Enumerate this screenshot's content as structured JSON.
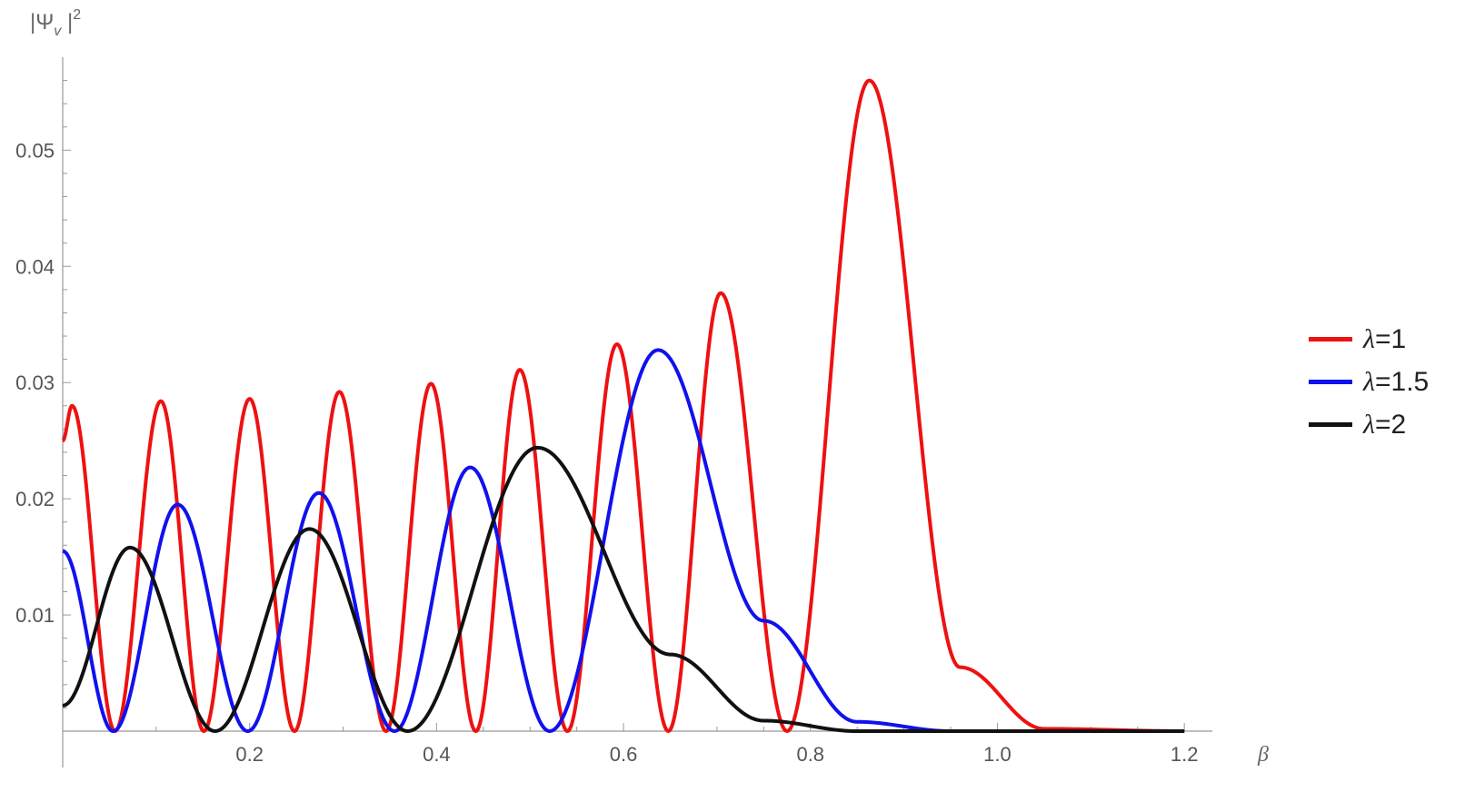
{
  "chart_data": {
    "type": "line",
    "title": "",
    "xlabel": "β",
    "ylabel": "|Ψ_v|²",
    "xlim": [
      0,
      1.23
    ],
    "ylim": [
      0,
      0.058
    ],
    "x_ticks": [
      0.2,
      0.4,
      0.6,
      0.8,
      1.0,
      1.2
    ],
    "x_tick_labels": [
      "0.2",
      "0.4",
      "0.6",
      "0.8",
      "1.0",
      "1.2"
    ],
    "y_ticks": [
      0.01,
      0.02,
      0.03,
      0.04,
      0.05
    ],
    "y_tick_labels": [
      "0.01",
      "0.02",
      "0.03",
      "0.04",
      "0.05"
    ],
    "legend_position": "right",
    "series": [
      {
        "name": "λ=1",
        "label_symbol": "λ",
        "label_value": "=1",
        "color": "#ee1111",
        "points": [
          [
            0.0,
            0.025
          ],
          [
            0.01,
            0.028
          ],
          [
            0.056,
            0.0
          ],
          [
            0.105,
            0.0284
          ],
          [
            0.151,
            0.0
          ],
          [
            0.2,
            0.0286
          ],
          [
            0.248,
            0.0
          ],
          [
            0.296,
            0.0292
          ],
          [
            0.346,
            0.0
          ],
          [
            0.394,
            0.0299
          ],
          [
            0.442,
            0.0
          ],
          [
            0.489,
            0.0311
          ],
          [
            0.54,
            0.0
          ],
          [
            0.593,
            0.0333
          ],
          [
            0.648,
            0.0
          ],
          [
            0.704,
            0.0377
          ],
          [
            0.775,
            0.0
          ],
          [
            0.863,
            0.056
          ],
          [
            0.96,
            0.0055
          ],
          [
            1.05,
            0.0002
          ],
          [
            1.2,
            0.0
          ]
        ]
      },
      {
        "name": "λ=1.5",
        "label_symbol": "λ",
        "label_value": "=1.5",
        "color": "#1111ee",
        "points": [
          [
            0.0,
            0.0155
          ],
          [
            0.054,
            0.0
          ],
          [
            0.123,
            0.0195
          ],
          [
            0.198,
            0.0
          ],
          [
            0.274,
            0.0205
          ],
          [
            0.355,
            0.0
          ],
          [
            0.436,
            0.0227
          ],
          [
            0.521,
            0.0
          ],
          [
            0.637,
            0.0328
          ],
          [
            0.75,
            0.0095
          ],
          [
            0.85,
            0.0008
          ],
          [
            0.95,
            0.0
          ],
          [
            1.2,
            0.0
          ]
        ]
      },
      {
        "name": "λ=2",
        "label_symbol": "λ",
        "label_value": "=2",
        "color": "#111111",
        "points": [
          [
            0.0,
            0.0022
          ],
          [
            0.072,
            0.0158
          ],
          [
            0.163,
            0.0
          ],
          [
            0.264,
            0.0174
          ],
          [
            0.369,
            0.0
          ],
          [
            0.508,
            0.0244
          ],
          [
            0.65,
            0.0066
          ],
          [
            0.75,
            0.0009
          ],
          [
            0.85,
            0.0
          ],
          [
            1.2,
            0.0
          ]
        ]
      }
    ]
  }
}
